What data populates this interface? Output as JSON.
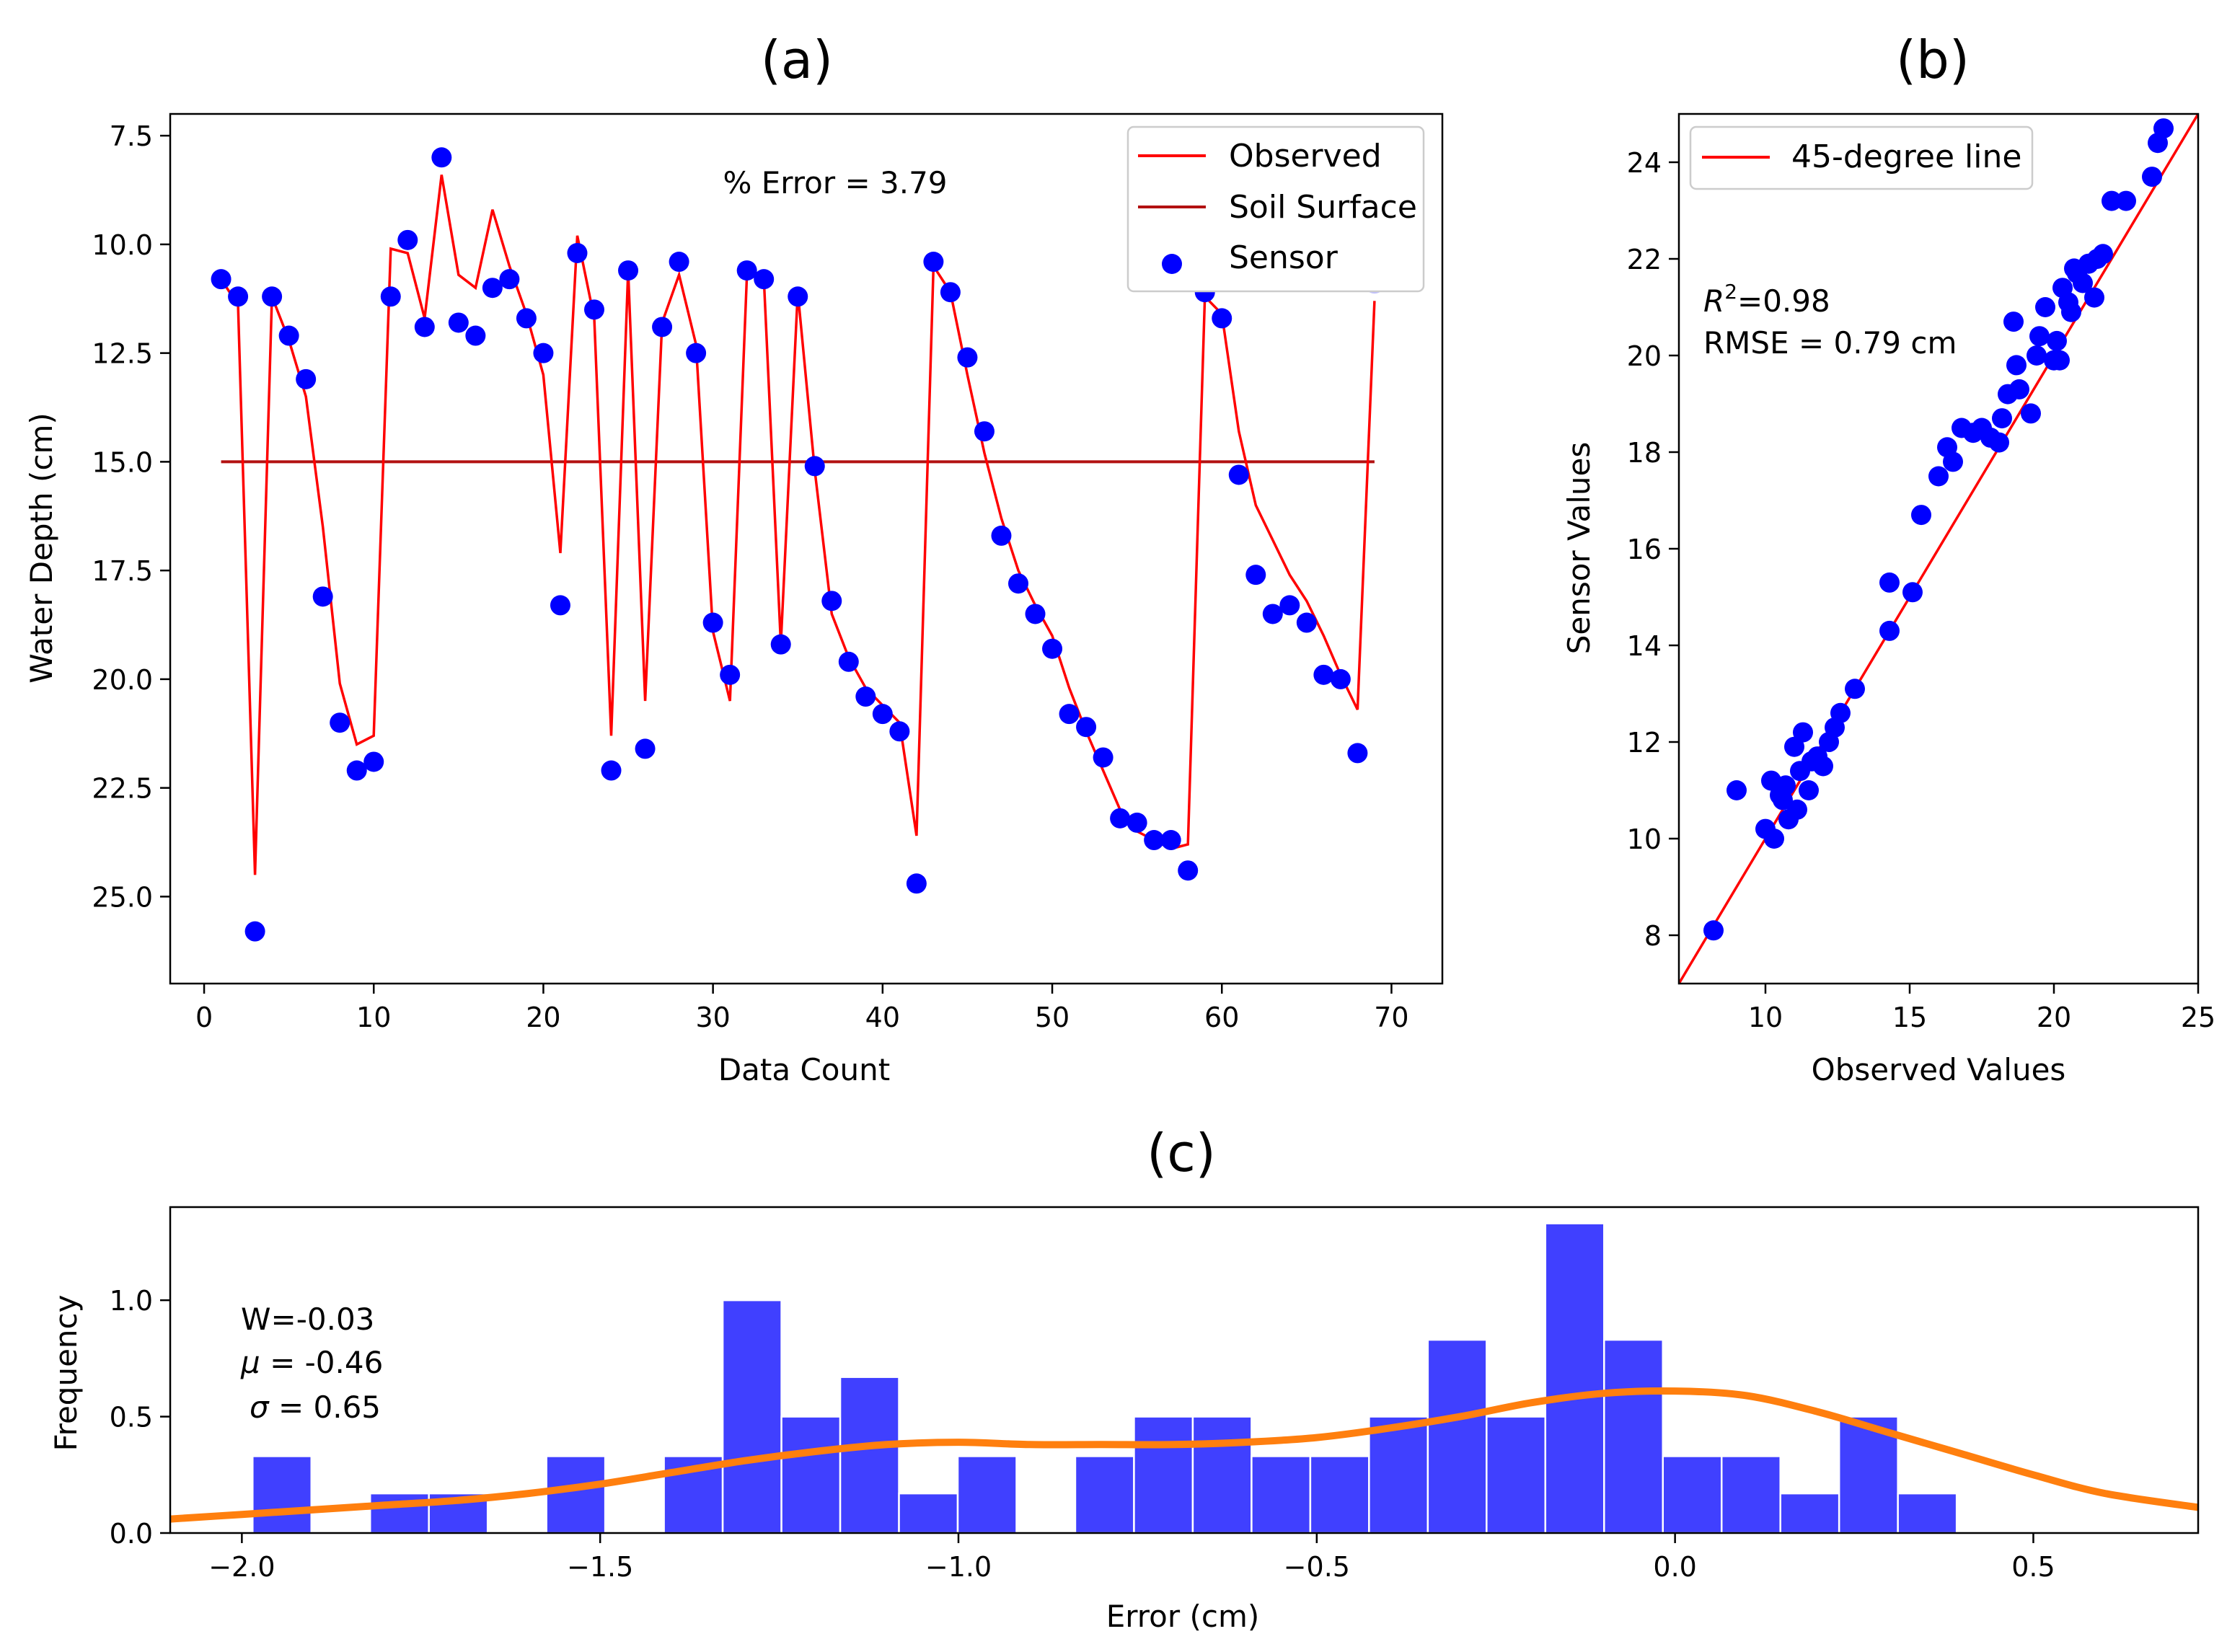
{
  "chart_data": [
    {
      "panel": "(a)",
      "type": "line+scatter",
      "title": "(a)",
      "xlabel": "Data Count",
      "ylabel": "Water Depth (cm)",
      "xlim": [
        -2,
        73
      ],
      "ylim": [
        27.0,
        7.0
      ],
      "y_inverted": true,
      "xticks": [
        0,
        10,
        20,
        30,
        40,
        50,
        60,
        70
      ],
      "yticks": [
        7.5,
        10.0,
        12.5,
        15.0,
        17.5,
        20.0,
        22.5,
        25.0
      ],
      "annotation": "% Error = 3.79",
      "legend": [
        "Observed",
        "Soil Surface",
        "Sensor"
      ],
      "soil_surface": 15.0,
      "soil_surface_x": [
        1,
        69
      ],
      "observed": {
        "x": [
          1,
          2,
          3,
          4,
          5,
          6,
          7,
          8,
          9,
          10,
          11,
          12,
          13,
          14,
          15,
          16,
          17,
          18,
          19,
          20,
          21,
          22,
          23,
          24,
          25,
          26,
          27,
          28,
          29,
          30,
          31,
          32,
          33,
          34,
          35,
          36,
          37,
          38,
          39,
          40,
          41,
          42,
          43,
          44,
          45,
          46,
          47,
          48,
          49,
          50,
          51,
          52,
          53,
          54,
          55,
          56,
          57,
          58,
          59,
          60,
          61,
          62,
          63,
          64,
          65,
          66,
          67,
          68,
          69
        ],
        "y": [
          10.8,
          11.4,
          24.5,
          11.2,
          12.2,
          13.5,
          16.5,
          20.1,
          21.5,
          21.3,
          10.1,
          10.2,
          11.7,
          8.4,
          10.7,
          11.0,
          9.2,
          10.5,
          11.6,
          13.0,
          17.1,
          9.8,
          11.7,
          21.3,
          10.6,
          20.5,
          11.8,
          10.7,
          12.3,
          18.9,
          20.5,
          10.7,
          10.8,
          19.2,
          11.1,
          15.2,
          18.5,
          19.5,
          20.2,
          20.6,
          21.0,
          23.6,
          10.5,
          11.1,
          13.0,
          14.8,
          16.3,
          17.5,
          18.3,
          19.0,
          20.2,
          21.2,
          22.1,
          23.0,
          23.5,
          23.7,
          23.9,
          23.8,
          11.2,
          11.6,
          14.3,
          16.0,
          16.8,
          17.6,
          18.2,
          19.0,
          19.9,
          20.7,
          11.3
        ]
      },
      "sensor": {
        "x": [
          1,
          2,
          3,
          4,
          5,
          6,
          7,
          8,
          9,
          10,
          11,
          12,
          13,
          14,
          15,
          16,
          17,
          18,
          19,
          20,
          21,
          22,
          23,
          24,
          25,
          26,
          27,
          28,
          29,
          30,
          31,
          32,
          33,
          34,
          35,
          36,
          37,
          38,
          39,
          40,
          41,
          42,
          43,
          44,
          45,
          46,
          47,
          48,
          49,
          50,
          51,
          52,
          53,
          54,
          55,
          56,
          57,
          58,
          59,
          60,
          61,
          62,
          63,
          64,
          65,
          66,
          67,
          68,
          69
        ],
        "y": [
          10.8,
          11.2,
          25.8,
          11.2,
          12.1,
          13.1,
          18.1,
          21.0,
          22.1,
          21.9,
          11.2,
          9.9,
          11.9,
          8.0,
          11.8,
          12.1,
          11.0,
          10.8,
          11.7,
          12.5,
          18.3,
          10.2,
          11.5,
          22.1,
          10.6,
          21.6,
          11.9,
          10.4,
          12.5,
          18.7,
          19.9,
          10.6,
          10.8,
          19.2,
          11.2,
          15.1,
          18.2,
          19.6,
          20.4,
          20.8,
          21.2,
          24.7,
          10.4,
          11.1,
          12.6,
          14.3,
          16.7,
          17.8,
          18.5,
          19.3,
          20.8,
          21.1,
          21.8,
          23.2,
          23.3,
          23.7,
          23.7,
          24.4,
          11.1,
          11.7,
          15.3,
          17.6,
          18.5,
          18.3,
          18.7,
          19.9,
          20.0,
          21.7,
          10.9
        ]
      }
    },
    {
      "panel": "(b)",
      "type": "scatter",
      "title": "(b)",
      "xlabel": "Observed Values",
      "ylabel": "Sensor Values",
      "xlim": [
        7,
        25
      ],
      "ylim": [
        7,
        25
      ],
      "xticks": [
        10,
        15,
        20,
        25
      ],
      "yticks": [
        8,
        10,
        12,
        14,
        16,
        18,
        20,
        22,
        24
      ],
      "legend": [
        "45-degree line"
      ],
      "annotation_r2_symbol": "R",
      "annotation_r2_sup": "2",
      "annotation_r2_value": "=0.98",
      "annotation_rmse": "RMSE = 0.79 cm",
      "points": {
        "x": [
          8.2,
          9.0,
          10.0,
          10.2,
          10.3,
          10.5,
          10.6,
          10.7,
          10.8,
          11.0,
          11.1,
          11.2,
          11.3,
          11.5,
          11.6,
          11.8,
          12.0,
          12.2,
          12.4,
          12.6,
          13.1,
          14.3,
          14.3,
          15.1,
          15.4,
          16.0,
          16.3,
          16.5,
          16.8,
          17.2,
          17.5,
          17.8,
          18.1,
          18.2,
          18.4,
          18.6,
          18.7,
          18.8,
          19.2,
          19.4,
          19.5,
          19.7,
          20.0,
          20.1,
          20.2,
          20.3,
          20.5,
          20.6,
          20.7,
          20.8,
          21.0,
          21.2,
          21.4,
          21.5,
          21.7,
          22.0,
          22.5,
          23.4,
          23.6,
          23.8
        ],
        "y": [
          8.1,
          11.0,
          10.2,
          11.2,
          10.0,
          10.9,
          10.8,
          11.1,
          10.4,
          11.9,
          10.6,
          11.4,
          12.2,
          11.0,
          11.6,
          11.7,
          11.5,
          12.0,
          12.3,
          12.6,
          13.1,
          14.3,
          15.3,
          15.1,
          16.7,
          17.5,
          18.1,
          17.8,
          18.5,
          18.4,
          18.5,
          18.3,
          18.2,
          18.7,
          19.2,
          20.7,
          19.8,
          19.3,
          18.8,
          20.0,
          20.4,
          21.0,
          19.9,
          20.3,
          19.9,
          21.4,
          21.1,
          20.9,
          21.8,
          21.7,
          21.5,
          21.9,
          21.2,
          22.0,
          22.1,
          23.2,
          23.2,
          23.7,
          24.4,
          24.7
        ]
      }
    },
    {
      "panel": "(c)",
      "type": "histogram+kde",
      "title": "(c)",
      "xlabel": "Error (cm)",
      "ylabel": "Frequency",
      "xlim": [
        -2.1,
        0.73
      ],
      "ylim": [
        0,
        1.4
      ],
      "xticks": [
        -2.0,
        -1.5,
        -1.0,
        -0.5,
        0.0,
        0.5
      ],
      "xtick_labels": [
        "−2.0",
        "−1.5",
        "−1.0",
        "−0.5",
        "0.0",
        "0.5"
      ],
      "yticks": [
        0.0,
        0.5,
        1.0
      ],
      "ytick_labels": [
        "0.0",
        "0.5",
        "1.0"
      ],
      "annotation_w": "W=-0.03",
      "annotation_mu_symbol": "μ",
      "annotation_mu_value": " = -0.46",
      "annotation_sigma_symbol": "σ",
      "annotation_sigma_value": " = 0.65",
      "bin_start": -1.985,
      "bin_width": 0.082,
      "counts": [
        0.33,
        0,
        0.17,
        0.17,
        0,
        0.33,
        0,
        0.33,
        1.0,
        0.5,
        0.67,
        0.17,
        0.33,
        0,
        0.33,
        0.5,
        0.5,
        0.33,
        0.33,
        0.5,
        0.83,
        0.5,
        1.33,
        0.83,
        0.33,
        0.33,
        0.17,
        0.5,
        0.17
      ],
      "kde": {
        "x": [
          -2.1,
          -2.0,
          -1.9,
          -1.8,
          -1.7,
          -1.6,
          -1.5,
          -1.4,
          -1.3,
          -1.2,
          -1.1,
          -1.0,
          -0.9,
          -0.8,
          -0.7,
          -0.6,
          -0.5,
          -0.4,
          -0.3,
          -0.2,
          -0.1,
          0.0,
          0.1,
          0.2,
          0.3,
          0.4,
          0.5,
          0.6,
          0.73
        ],
        "y": [
          0.06,
          0.08,
          0.1,
          0.12,
          0.14,
          0.17,
          0.21,
          0.26,
          0.31,
          0.35,
          0.38,
          0.39,
          0.38,
          0.38,
          0.38,
          0.39,
          0.41,
          0.45,
          0.5,
          0.56,
          0.6,
          0.61,
          0.59,
          0.52,
          0.43,
          0.34,
          0.25,
          0.17,
          0.11
        ]
      }
    }
  ],
  "colors": {
    "observed": "#ff0000",
    "soil_surface": "#b21111",
    "sensor": "#0000ff",
    "line45": "#ff0000",
    "hist": "#4040ff",
    "kde": "#ff7f0e"
  }
}
